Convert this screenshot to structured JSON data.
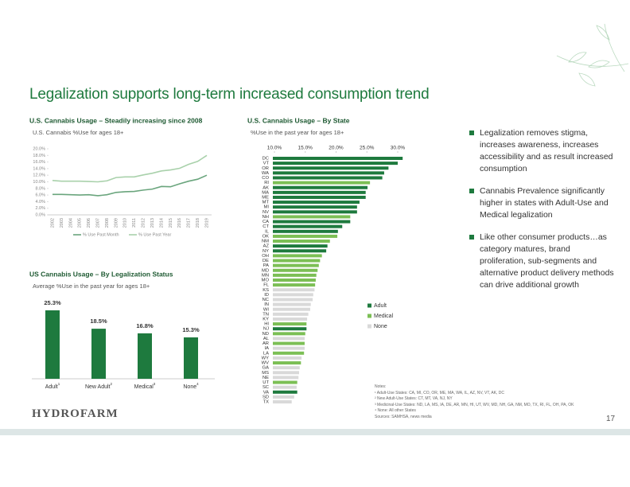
{
  "slide": {
    "title": "Legalization supports long-term increased consumption trend",
    "bullets": [
      "Legalization removes stigma, increases awareness, increases accessibility and as result increased consumption",
      "Cannabis Prevalence significantly higher in states with Adult-Use and Medical legalization",
      "Like other consumer products…as category matures, brand proliferation, sub-segments and alternative product delivery methods can drive additional growth"
    ],
    "notes": [
      "Notes:",
      "¹ Adult-Use States: CA, MI, CO, OR, ME, MA, WA, IL, AZ, NV, VT, AK, DC",
      "² New Adult-Use States: CT, MT, VA, NJ, NY",
      "³ Medicinal-Use States: ND, LA, MS, IA, DE, AR, MN, HI, UT, WV, MD, NH, GA, NM, MO, TX, RI, FL, OH, PA, OK",
      "⁴ None: All other States",
      "Sources: SAMHSA, news media"
    ],
    "logo": "HYDROFARM",
    "page": 17
  },
  "chart_data": [
    {
      "type": "line",
      "title": "U.S. Cannabis Usage – Steadily increasing since 2008",
      "subtitle": "U.S. Cannabis %Use for ages 18+",
      "categories": [
        "2002",
        "2003",
        "2004",
        "2005",
        "2006",
        "2007",
        "2008",
        "2009",
        "2010",
        "2011",
        "2012",
        "2013",
        "2014",
        "2015",
        "2016",
        "2017",
        "2018",
        "2019"
      ],
      "series": [
        {
          "name": "% Use Past  Month",
          "color": "#6aa57d",
          "values": [
            6.2,
            6.2,
            6.1,
            6.0,
            6.1,
            5.8,
            6.1,
            6.8,
            7.0,
            7.1,
            7.5,
            7.8,
            8.6,
            8.5,
            9.4,
            10.2,
            10.8,
            12.0
          ]
        },
        {
          "name": "% Use Past Year",
          "color": "#a9d1ab",
          "values": [
            10.4,
            10.2,
            10.2,
            10.2,
            10.1,
            10.0,
            10.3,
            11.3,
            11.5,
            11.5,
            12.1,
            12.6,
            13.3,
            13.6,
            14.1,
            15.3,
            16.2,
            18.0
          ]
        }
      ],
      "ylim": [
        0,
        20
      ],
      "yticks": [
        {
          "value": 0,
          "label": "0.0%"
        },
        {
          "value": 2,
          "label": "2.0%"
        },
        {
          "value": 4,
          "label": "4.0%"
        },
        {
          "value": 6,
          "label": "6.0%"
        },
        {
          "value": 8,
          "label": "8.0%"
        },
        {
          "value": 10,
          "label": "10.0%"
        },
        {
          "value": 12,
          "label": "12.0%"
        },
        {
          "value": 14,
          "label": "14.0%"
        },
        {
          "value": 16,
          "label": "16.0%"
        },
        {
          "value": 18,
          "label": "18.0%"
        },
        {
          "value": 20,
          "label": "20.0%"
        }
      ]
    },
    {
      "type": "bar",
      "title": "US Cannabis Usage – By Legalization Status",
      "subtitle": "Average %Use in the past year for ages 18+",
      "categories": [
        "Adult",
        "New Adult",
        "Medical",
        "None"
      ],
      "footnote_marks": [
        "1",
        "2",
        "3",
        "4"
      ],
      "values": [
        25.3,
        18.5,
        16.8,
        15.3
      ],
      "value_labels": [
        "25.3%",
        "18.5%",
        "16.8%",
        "15.3%"
      ],
      "color": "#1e7a3e"
    },
    {
      "type": "hbar",
      "title": "U.S. Cannabis Usage – By State",
      "subtitle": "%Use in the past year for ages 18+",
      "categories": [
        "DC",
        "VT",
        "OR",
        "WA",
        "CO",
        "RI",
        "AK",
        "MA",
        "ME",
        "MT",
        "MI",
        "NV",
        "NH",
        "CA",
        "CT",
        "IL",
        "OK",
        "NM",
        "AZ",
        "NY",
        "OH",
        "DE",
        "PA",
        "MD",
        "MN",
        "MO",
        "FL",
        "KS",
        "ID",
        "NC",
        "IN",
        "WI",
        "TN",
        "KY",
        "HI",
        "NJ",
        "ND",
        "AL",
        "AR",
        "IA",
        "LA",
        "WY",
        "WV",
        "GA",
        "MS",
        "NE",
        "UT",
        "SC",
        "VA",
        "SD",
        "TX"
      ],
      "series": [
        {
          "name": "Adult",
          "color": "#1e7a3e",
          "values": [
            30.8,
            30.0,
            28.5,
            27.8,
            27.5,
            null,
            25.1,
            24.8,
            24.8,
            23.8,
            23.4,
            23.4,
            null,
            22.3,
            21.0,
            20.3,
            null,
            null,
            18.6,
            18.4,
            null,
            null,
            null,
            null,
            null,
            null,
            null,
            null,
            null,
            null,
            null,
            null,
            null,
            null,
            null,
            15.2,
            null,
            null,
            null,
            null,
            null,
            null,
            null,
            null,
            null,
            null,
            null,
            null,
            13.7,
            null,
            null
          ]
        },
        {
          "name": "Medical",
          "color": "#7cbf55",
          "values": [
            null,
            null,
            null,
            null,
            null,
            25.5,
            null,
            null,
            null,
            null,
            null,
            null,
            22.3,
            null,
            null,
            null,
            20.2,
            19.0,
            null,
            null,
            17.7,
            17.4,
            17.2,
            17.0,
            16.8,
            16.7,
            16.6,
            null,
            null,
            null,
            null,
            null,
            null,
            null,
            15.2,
            null,
            15.0,
            null,
            14.9,
            null,
            14.8,
            null,
            14.3,
            null,
            null,
            null,
            13.7,
            null,
            null,
            null,
            null
          ]
        },
        {
          "name": "None",
          "color": "#d9d9d9",
          "values": [
            null,
            null,
            null,
            null,
            null,
            null,
            null,
            null,
            null,
            null,
            null,
            null,
            null,
            null,
            null,
            null,
            null,
            null,
            null,
            null,
            null,
            null,
            null,
            null,
            null,
            null,
            null,
            16.5,
            16.3,
            16.2,
            15.9,
            15.8,
            15.5,
            15.3,
            null,
            null,
            null,
            14.9,
            null,
            14.9,
            null,
            14.4,
            null,
            14.1,
            14.0,
            13.9,
            null,
            13.6,
            null,
            13.2,
            12.8
          ]
        }
      ],
      "xlim": [
        10,
        32
      ],
      "xticks": [
        {
          "value": 10,
          "label": "10.0%"
        },
        {
          "value": 15,
          "label": "15.0%"
        },
        {
          "value": 20,
          "label": "20.0%"
        },
        {
          "value": 25,
          "label": "25.0%"
        },
        {
          "value": 30,
          "label": "30.0%"
        }
      ]
    }
  ]
}
